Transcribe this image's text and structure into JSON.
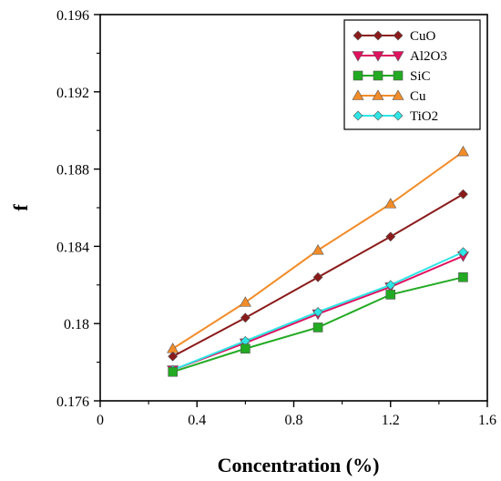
{
  "chart_data": {
    "type": "line",
    "xlabel": "Concentration (%)",
    "ylabel": "f",
    "xlim": [
      0,
      1.6
    ],
    "ylim": [
      0.176,
      0.196
    ],
    "x_ticks": [
      0,
      0.4,
      0.8,
      1.2,
      1.6
    ],
    "x_tick_labels": [
      "0",
      "0.4",
      "0.8",
      "1.2",
      "1.6"
    ],
    "y_ticks": [
      0.176,
      0.18,
      0.184,
      0.188,
      0.192,
      0.196
    ],
    "y_tick_labels": [
      "0.176",
      "0.18",
      "0.184",
      "0.188",
      "0.192",
      "0.196"
    ],
    "grid": false,
    "legend_position": "top-right",
    "x": [
      0.3,
      0.6,
      0.9,
      1.2,
      1.5
    ],
    "series": [
      {
        "name": "CuO",
        "values": [
          0.1783,
          0.1803,
          0.1824,
          0.1845,
          0.1867
        ],
        "color": "#8B1A1A",
        "marker": "diamond"
      },
      {
        "name": "Al2O3",
        "values": [
          0.1776,
          0.179,
          0.1805,
          0.1819,
          0.1835
        ],
        "color": "#E0115F",
        "marker": "triangle-down"
      },
      {
        "name": "SiC",
        "values": [
          0.1775,
          0.1787,
          0.1798,
          0.1815,
          0.1824
        ],
        "color": "#22AA22",
        "marker": "square"
      },
      {
        "name": "Cu",
        "values": [
          0.1787,
          0.1811,
          0.1838,
          0.1862,
          0.1889
        ],
        "color": "#F28C28",
        "marker": "triangle-up"
      },
      {
        "name": "TiO2",
        "values": [
          0.1776,
          0.1791,
          0.1806,
          0.182,
          0.1837
        ],
        "color": "#2EE6E6",
        "marker": "diamond"
      }
    ]
  }
}
